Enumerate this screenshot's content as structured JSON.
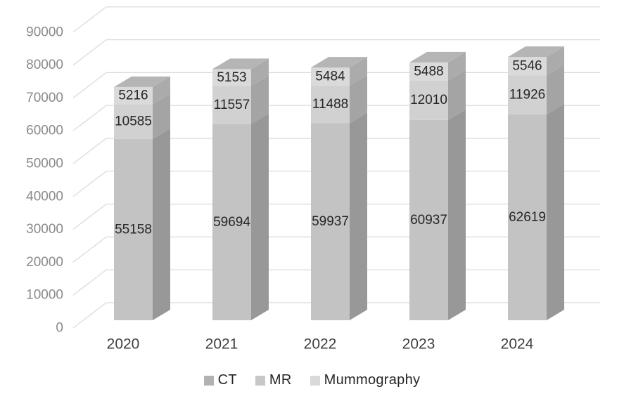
{
  "chart_data": {
    "type": "bar",
    "variant": "3d-stacked-column",
    "title": "",
    "xlabel": "",
    "ylabel": "",
    "categories": [
      "2020",
      "2021",
      "2022",
      "2023",
      "2024"
    ],
    "series": [
      {
        "name": "CT",
        "values": [
          55158,
          59694,
          59937,
          60937,
          62619
        ],
        "color": "#b2b2b2",
        "front_color": "#c3c3c3",
        "side_color": "#989898",
        "top_color": "#aaaaaa"
      },
      {
        "name": "MR",
        "values": [
          10585,
          11557,
          11488,
          12010,
          11926
        ],
        "color": "#c7c7c7",
        "front_color": "#d1d1d1",
        "side_color": "#a4a4a4",
        "top_color": "#b2b2b2"
      },
      {
        "name": "Mummography",
        "values": [
          5216,
          5153,
          5484,
          5488,
          5546
        ],
        "color": "#d9d9d9",
        "front_color": "#dadada",
        "side_color": "#ababab",
        "top_color": "#b5b5b5"
      }
    ],
    "ylim": [
      0,
      90000
    ],
    "ytick_labels": [
      "0",
      "10000",
      "20000",
      "30000",
      "40000",
      "50000",
      "60000",
      "70000",
      "80000",
      "90000"
    ],
    "grid": true,
    "data_labels": true,
    "legend_position": "bottom"
  },
  "styles": {
    "background": "#ffffff",
    "gridline_color": "#d9d9d9",
    "axis_text_color": "#8a8a8a",
    "category_text_color": "#3f3f3f",
    "data_label_color": "#262626",
    "legend_text_color": "#262626"
  }
}
